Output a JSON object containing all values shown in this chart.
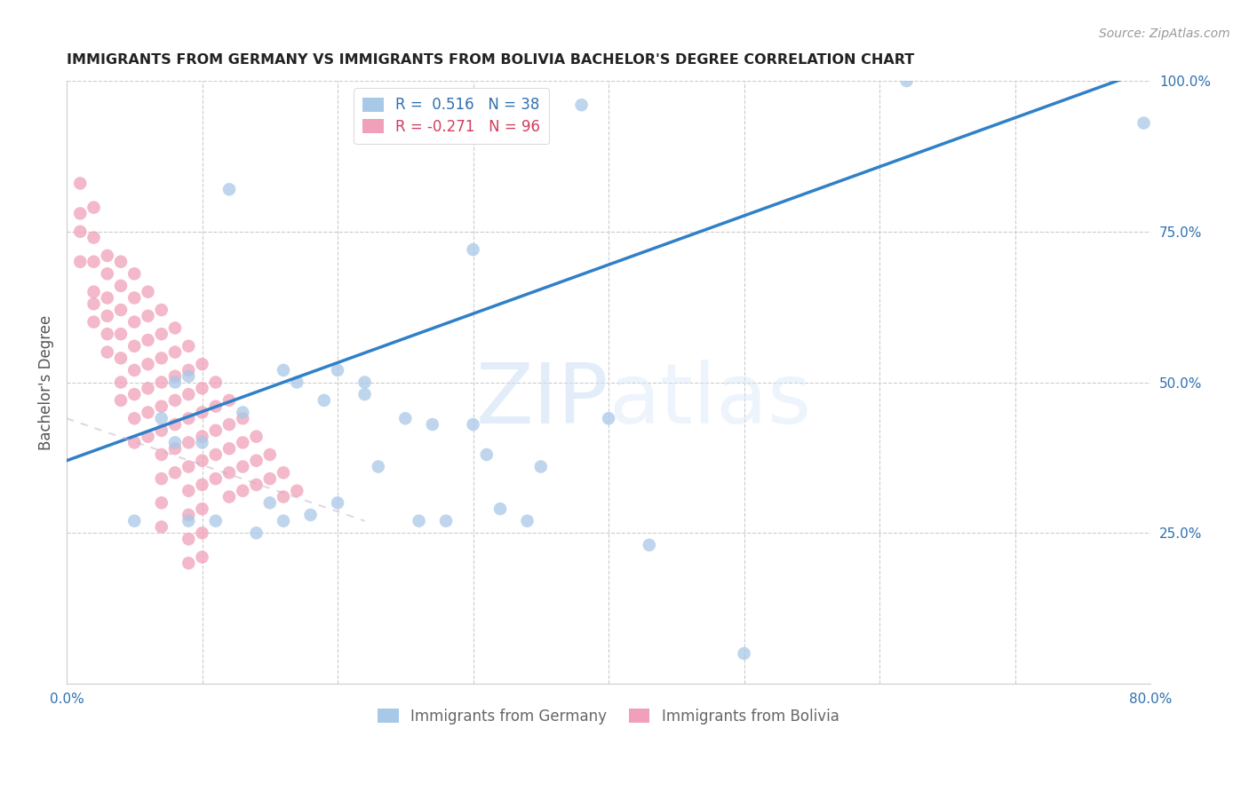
{
  "title": "IMMIGRANTS FROM GERMANY VS IMMIGRANTS FROM BOLIVIA BACHELOR'S DEGREE CORRELATION CHART",
  "source": "Source: ZipAtlas.com",
  "ylabel": "Bachelor's Degree",
  "xlim": [
    0.0,
    0.8
  ],
  "ylim": [
    0.0,
    1.0
  ],
  "xticks": [
    0.0,
    0.1,
    0.2,
    0.3,
    0.4,
    0.5,
    0.6,
    0.7,
    0.8
  ],
  "xticklabels_show": [
    "0.0%",
    "",
    "",
    "",
    "",
    "",
    "",
    "",
    "80.0%"
  ],
  "yticks_right": [
    0.0,
    0.25,
    0.5,
    0.75,
    1.0
  ],
  "yticklabels_right": [
    "",
    "25.0%",
    "50.0%",
    "75.0%",
    "100.0%"
  ],
  "germany_color": "#a8c8e8",
  "bolivia_color": "#f0a0b8",
  "germany_R": 0.516,
  "germany_N": 38,
  "bolivia_R": -0.271,
  "bolivia_N": 96,
  "germany_line_color": "#3080c8",
  "bolivia_line_color": "#c8a0b0",
  "watermark_zip": "ZIP",
  "watermark_atlas": "atlas",
  "germany_line_x0": 0.0,
  "germany_line_y0": 0.37,
  "germany_line_x1": 0.8,
  "germany_line_y1": 1.02,
  "bolivia_line_x0": 0.0,
  "bolivia_line_y0": 0.44,
  "bolivia_line_x1": 0.22,
  "bolivia_line_y1": 0.27,
  "germany_x": [
    0.38,
    0.12,
    0.3,
    0.62,
    0.795,
    0.08,
    0.09,
    0.07,
    0.08,
    0.1,
    0.16,
    0.2,
    0.17,
    0.22,
    0.19,
    0.25,
    0.22,
    0.3,
    0.31,
    0.23,
    0.35,
    0.32,
    0.4,
    0.05,
    0.13,
    0.27,
    0.14,
    0.18,
    0.11,
    0.09,
    0.15,
    0.2,
    0.16,
    0.26,
    0.34,
    0.28,
    0.43,
    0.5
  ],
  "germany_y": [
    0.96,
    0.82,
    0.72,
    1.0,
    0.93,
    0.5,
    0.51,
    0.44,
    0.4,
    0.4,
    0.52,
    0.52,
    0.5,
    0.5,
    0.47,
    0.44,
    0.48,
    0.43,
    0.38,
    0.36,
    0.36,
    0.29,
    0.44,
    0.27,
    0.45,
    0.43,
    0.25,
    0.28,
    0.27,
    0.27,
    0.3,
    0.3,
    0.27,
    0.27,
    0.27,
    0.27,
    0.23,
    0.05
  ],
  "bolivia_x": [
    0.01,
    0.01,
    0.01,
    0.01,
    0.02,
    0.02,
    0.02,
    0.02,
    0.02,
    0.02,
    0.03,
    0.03,
    0.03,
    0.03,
    0.03,
    0.03,
    0.04,
    0.04,
    0.04,
    0.04,
    0.04,
    0.04,
    0.04,
    0.05,
    0.05,
    0.05,
    0.05,
    0.05,
    0.05,
    0.05,
    0.05,
    0.06,
    0.06,
    0.06,
    0.06,
    0.06,
    0.06,
    0.06,
    0.07,
    0.07,
    0.07,
    0.07,
    0.07,
    0.07,
    0.07,
    0.07,
    0.07,
    0.07,
    0.08,
    0.08,
    0.08,
    0.08,
    0.08,
    0.08,
    0.08,
    0.09,
    0.09,
    0.09,
    0.09,
    0.09,
    0.09,
    0.09,
    0.09,
    0.09,
    0.09,
    0.1,
    0.1,
    0.1,
    0.1,
    0.1,
    0.1,
    0.1,
    0.1,
    0.1,
    0.11,
    0.11,
    0.11,
    0.11,
    0.11,
    0.12,
    0.12,
    0.12,
    0.12,
    0.12,
    0.13,
    0.13,
    0.13,
    0.13,
    0.14,
    0.14,
    0.14,
    0.15,
    0.15,
    0.16,
    0.16,
    0.17
  ],
  "bolivia_y": [
    0.83,
    0.78,
    0.75,
    0.7,
    0.79,
    0.74,
    0.7,
    0.65,
    0.63,
    0.6,
    0.71,
    0.68,
    0.64,
    0.61,
    0.58,
    0.55,
    0.7,
    0.66,
    0.62,
    0.58,
    0.54,
    0.5,
    0.47,
    0.68,
    0.64,
    0.6,
    0.56,
    0.52,
    0.48,
    0.44,
    0.4,
    0.65,
    0.61,
    0.57,
    0.53,
    0.49,
    0.45,
    0.41,
    0.62,
    0.58,
    0.54,
    0.5,
    0.46,
    0.42,
    0.38,
    0.34,
    0.3,
    0.26,
    0.59,
    0.55,
    0.51,
    0.47,
    0.43,
    0.39,
    0.35,
    0.56,
    0.52,
    0.48,
    0.44,
    0.4,
    0.36,
    0.32,
    0.28,
    0.24,
    0.2,
    0.53,
    0.49,
    0.45,
    0.41,
    0.37,
    0.33,
    0.29,
    0.25,
    0.21,
    0.5,
    0.46,
    0.42,
    0.38,
    0.34,
    0.47,
    0.43,
    0.39,
    0.35,
    0.31,
    0.44,
    0.4,
    0.36,
    0.32,
    0.41,
    0.37,
    0.33,
    0.38,
    0.34,
    0.35,
    0.31,
    0.32
  ]
}
